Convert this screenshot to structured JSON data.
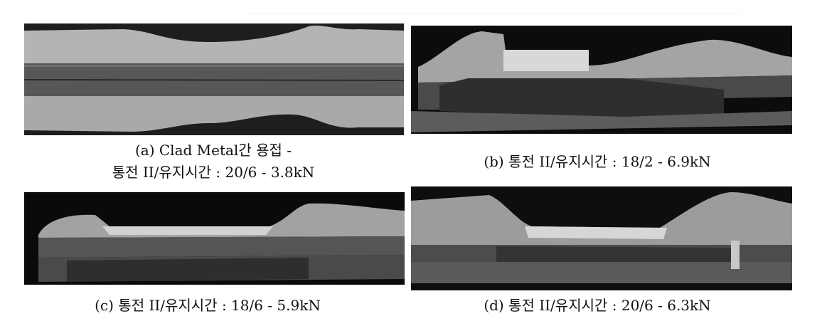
{
  "panels": [
    {
      "caption": [
        "(a) Clad Metal간 용접 -",
        "통전 II/유지시간 : 20/6 - 3.8kN"
      ]
    },
    {
      "caption": [
        "(b) 통전 II/유지시간 : 18/2 - 6.9kN"
      ]
    },
    {
      "caption": [
        "(c) 통전 II/유지시간 : 18/6 - 5.9kN"
      ]
    },
    {
      "caption": [
        "(d) 통전 II/유지시간 : 20/6 - 6.3kN"
      ]
    }
  ]
}
